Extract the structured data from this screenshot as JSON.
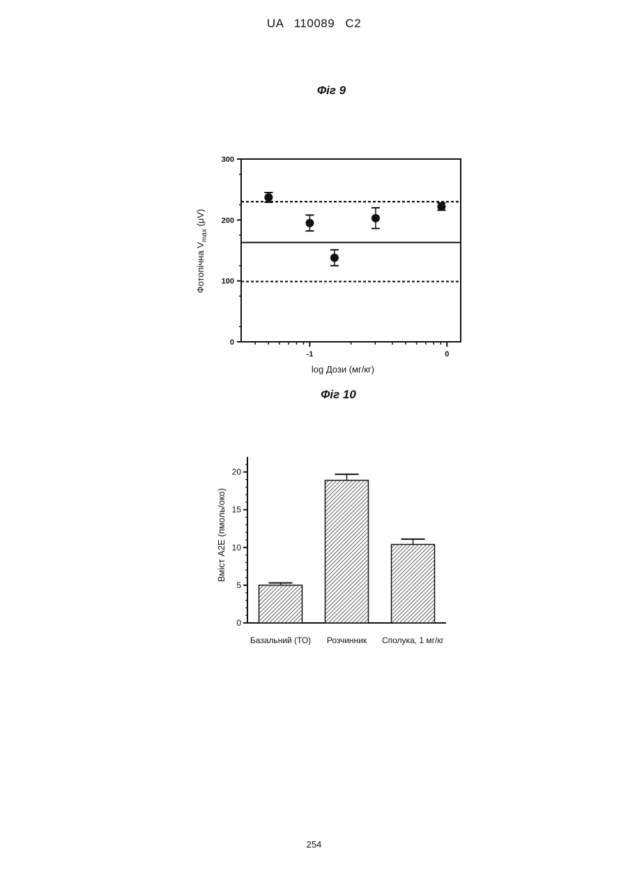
{
  "header": {
    "text": "UA 110089 C2"
  },
  "page_number": "254",
  "figures": {
    "fig9": {
      "caption": "Фіг 9"
    },
    "fig10": {
      "caption": "Фіг 10"
    }
  },
  "chart_data": [
    {
      "type": "scatter",
      "title": "",
      "ylabel": "Фотопічна V",
      "ylabel_subscript": "max",
      "ylabel_unit": " (μV)",
      "xlabel": "log Дози (мг/кг)",
      "xlim": [
        -1.5,
        0.1
      ],
      "ylim": [
        0,
        300
      ],
      "y_ticks": [
        0,
        100,
        200,
        300
      ],
      "x_ticks": [
        -1,
        0
      ],
      "y_tick_labels": [
        "0",
        "100",
        "200",
        "300"
      ],
      "x_tick_labels": [
        "-1",
        "0"
      ],
      "grid": false,
      "points": [
        {
          "x": -1.3,
          "y": 237,
          "err": 8
        },
        {
          "x": -1.0,
          "y": 195,
          "err": 13
        },
        {
          "x": -0.82,
          "y": 138,
          "err": 13
        },
        {
          "x": -0.52,
          "y": 203,
          "err": 17
        },
        {
          "x": -0.04,
          "y": 222,
          "err": 6
        }
      ],
      "reference_lines": [
        {
          "y": 230,
          "style": "dashed"
        },
        {
          "y": 163,
          "style": "solid"
        },
        {
          "y": 99,
          "style": "dashed"
        }
      ]
    },
    {
      "type": "bar",
      "title": "",
      "ylabel": "Вміст A2E (пмоль/око)",
      "xlabel": "",
      "ylim": [
        0,
        22
      ],
      "y_ticks": [
        0,
        5,
        10,
        15,
        20
      ],
      "y_tick_labels": [
        "0",
        "5",
        "10",
        "15",
        "20"
      ],
      "grid": false,
      "fill": "hatched",
      "categories": [
        "Базальний (ТО)",
        "Розчинник",
        "Сполука, 1 мг/кг"
      ],
      "values": [
        5.0,
        18.9,
        10.4
      ],
      "errors": [
        0.3,
        0.8,
        0.7
      ]
    }
  ]
}
